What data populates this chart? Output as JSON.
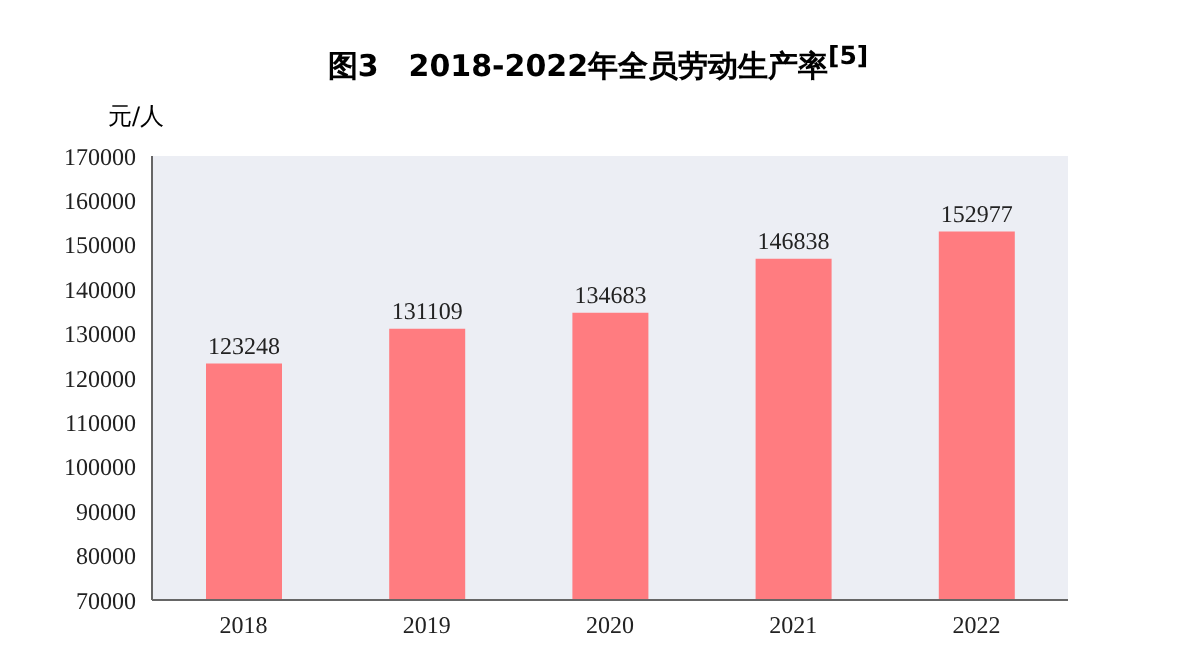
{
  "chart_data": {
    "type": "bar",
    "title": "图3　2018-2022年全员劳动生产率$^{[5]}$",
    "ylabel": "元/人",
    "categories": [
      "2018",
      "2019",
      "2020",
      "2021",
      "2022"
    ],
    "values": [
      123248,
      131109,
      134683,
      146838,
      152977
    ],
    "color": "#ff7c80",
    "ylim": [
      70000,
      170000
    ],
    "yticks": [
      70000,
      80000,
      90000,
      100000,
      110000,
      120000,
      130000,
      140000,
      150000,
      160000,
      170000
    ],
    "grid": false,
    "data_labels": true
  }
}
